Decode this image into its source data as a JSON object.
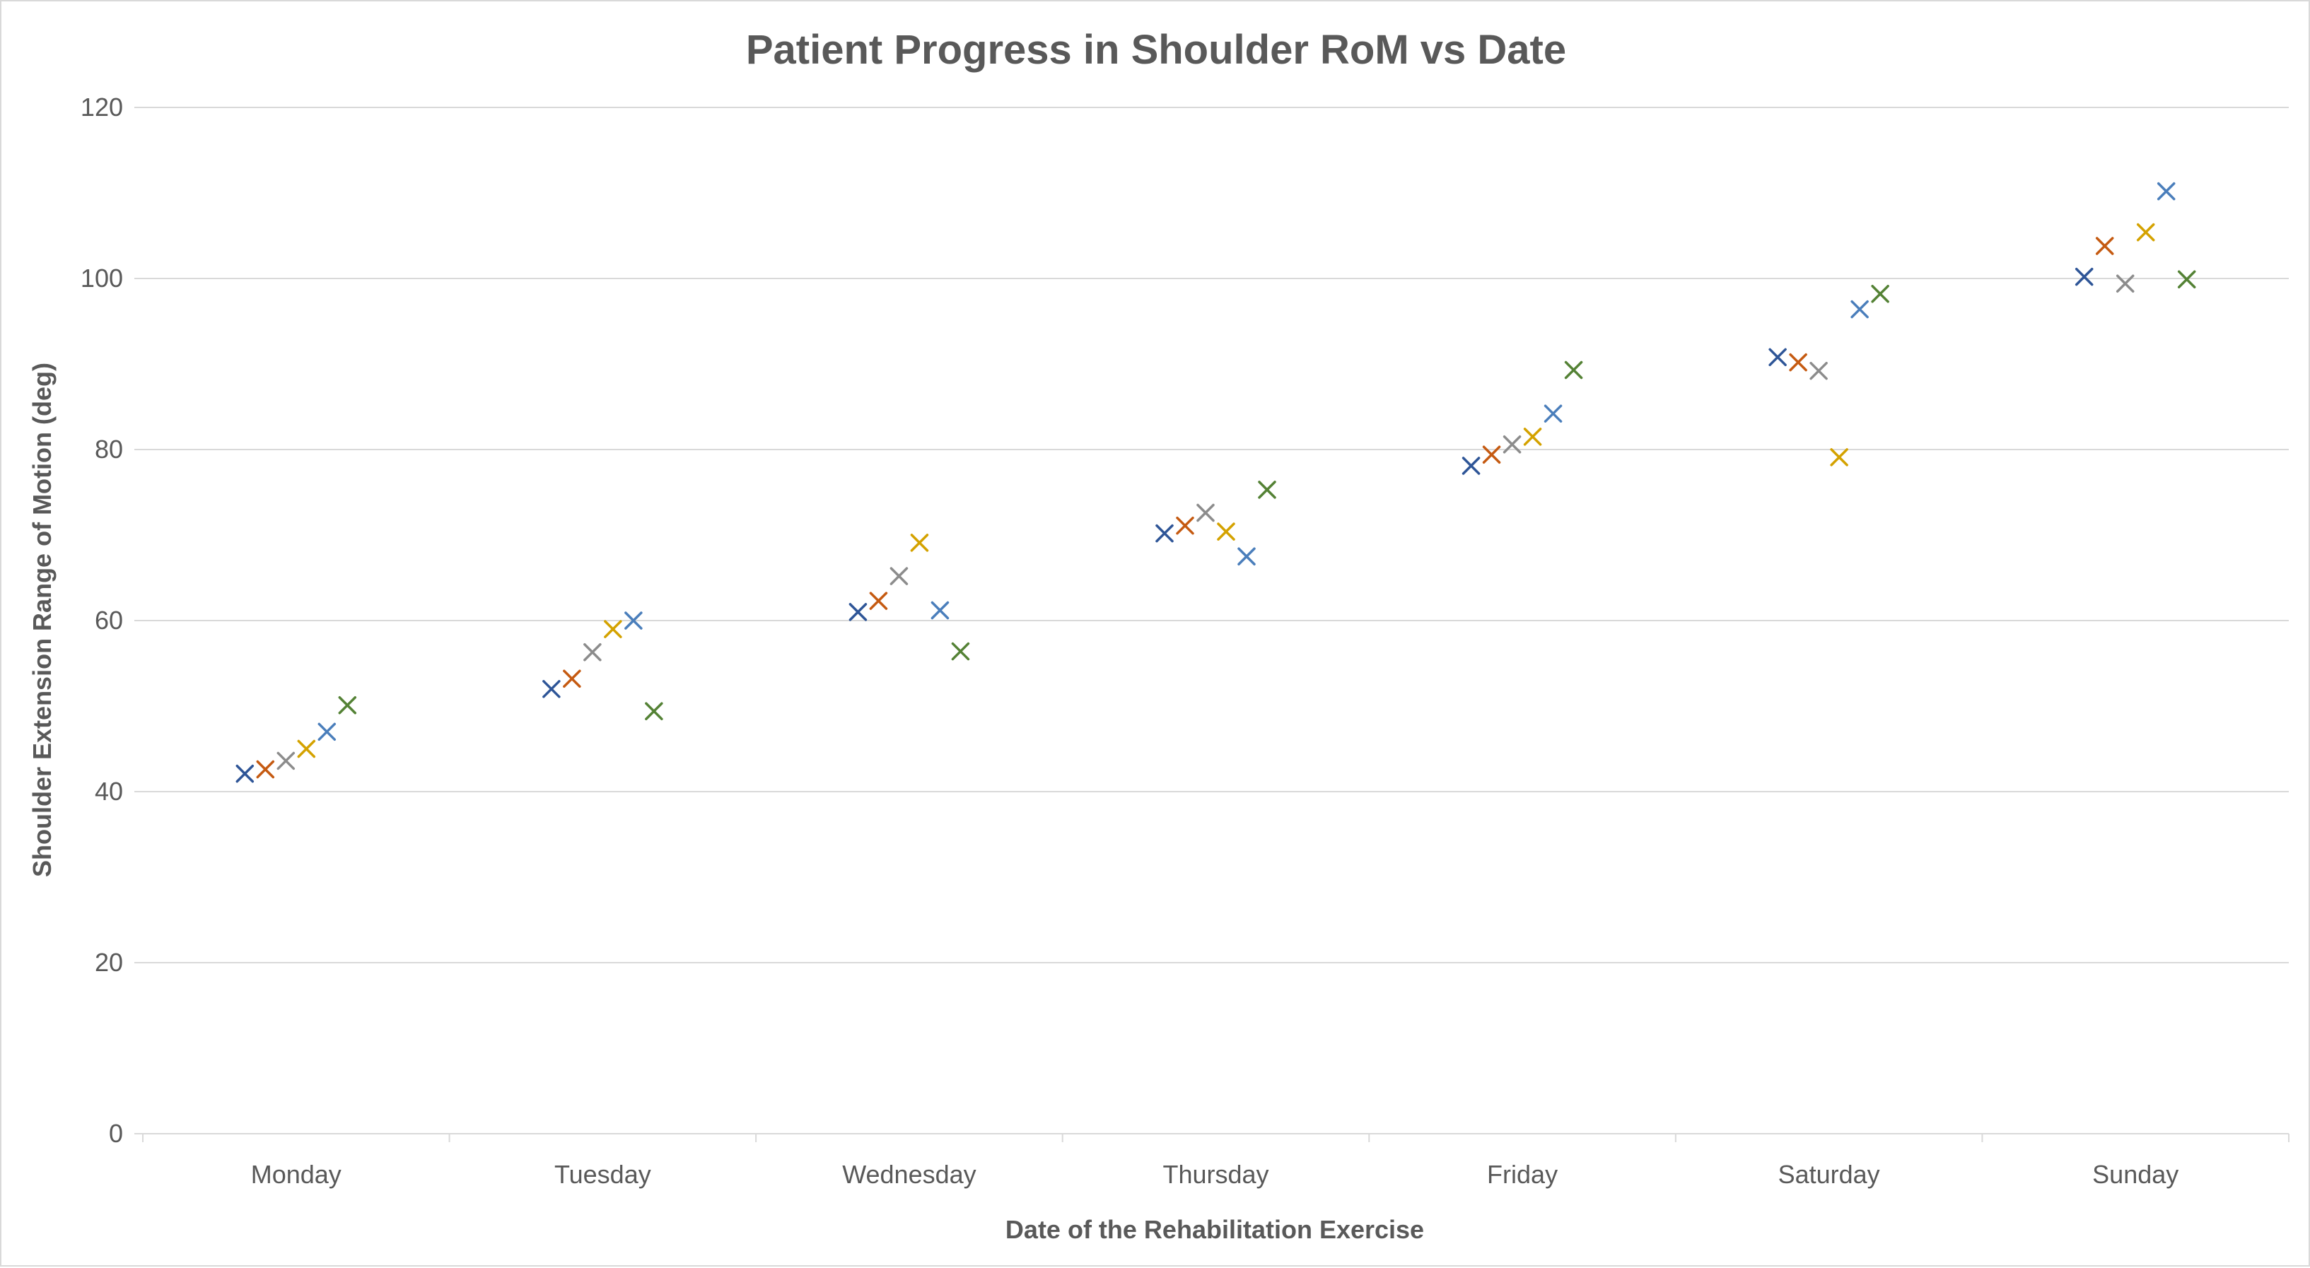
{
  "chart_data": {
    "type": "scatter",
    "title": "Patient Progress in Shoulder RoM vs Date",
    "xlabel": "Date of the Rehabilitation Exercise",
    "ylabel": "Shoulder Extension Range of Motion (deg)",
    "categories": [
      "Monday",
      "Tuesday",
      "Wednesday",
      "Thursday",
      "Friday",
      "Saturday",
      "Sunday"
    ],
    "ylim": [
      0,
      120
    ],
    "yticks": [
      0,
      20,
      40,
      60,
      80,
      100,
      120
    ],
    "grid": true,
    "legend": "none",
    "marker": "x",
    "series": [
      {
        "color": "#2E5597",
        "values": [
          42.1,
          52.0,
          61.0,
          70.2,
          78.1,
          90.8,
          100.2
        ]
      },
      {
        "color": "#C55A11",
        "values": [
          42.6,
          53.2,
          62.3,
          71.1,
          79.4,
          90.2,
          103.8
        ]
      },
      {
        "color": "#8C8C8C",
        "values": [
          43.6,
          56.3,
          65.2,
          72.6,
          80.6,
          89.2,
          99.4
        ]
      },
      {
        "color": "#D4A200",
        "values": [
          45.0,
          59.0,
          69.1,
          70.4,
          81.5,
          79.1,
          105.4
        ]
      },
      {
        "color": "#4A7EBB",
        "values": [
          47.0,
          60.0,
          61.2,
          67.5,
          84.2,
          96.4,
          110.2
        ]
      },
      {
        "color": "#548235",
        "values": [
          50.1,
          49.4,
          56.4,
          75.3,
          89.3,
          98.2,
          99.9
        ]
      }
    ]
  }
}
